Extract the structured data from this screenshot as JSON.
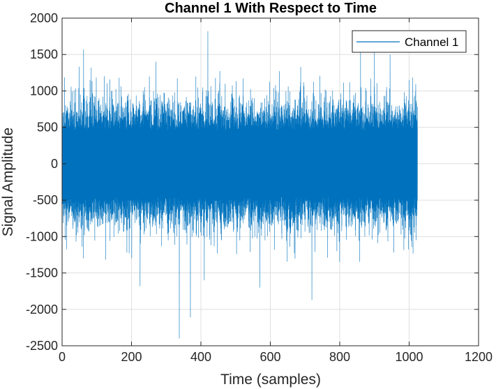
{
  "colors": {
    "series": "#0072BD",
    "grid": "#dfdfdf",
    "axis": "#262626",
    "background": "#ffffff"
  },
  "chart_data": {
    "type": "line",
    "title": "Channel 1 With Respect to Time",
    "xlabel": "Time (samples)",
    "ylabel": "Signal Amplitude",
    "xlim": [
      0,
      1200
    ],
    "ylim": [
      -2500,
      2000
    ],
    "xticks": [
      0,
      200,
      400,
      600,
      800,
      1000,
      1200
    ],
    "yticks": [
      -2500,
      -2000,
      -1500,
      -1000,
      -500,
      0,
      500,
      1000,
      1500,
      2000
    ],
    "xtick_labels": [
      "0",
      "200",
      "400",
      "600",
      "800",
      "1000",
      "1200"
    ],
    "ytick_labels": [
      "-2500",
      "-2000",
      "-1500",
      "-1000",
      "-500",
      "0",
      "500",
      "1000",
      "1500",
      "2000"
    ],
    "grid": true,
    "legend_position": "top-right",
    "series": [
      {
        "name": "Channel 1",
        "x_range": [
          0,
          1024
        ],
        "typical_band": [
          -800,
          800
        ],
        "notable_peaks": [
          {
            "x": 62,
            "y": 1570
          },
          {
            "x": 270,
            "y": 1400
          },
          {
            "x": 420,
            "y": 1820
          },
          {
            "x": 860,
            "y": 1550
          },
          {
            "x": 900,
            "y": 1600
          },
          {
            "x": 945,
            "y": 1500
          },
          {
            "x": 1000,
            "y": 1150
          }
        ],
        "notable_troughs": [
          {
            "x": 62,
            "y": -1300
          },
          {
            "x": 225,
            "y": -1680
          },
          {
            "x": 338,
            "y": -2400
          },
          {
            "x": 370,
            "y": -2110
          },
          {
            "x": 410,
            "y": -1600
          },
          {
            "x": 570,
            "y": -1700
          },
          {
            "x": 720,
            "y": -1870
          },
          {
            "x": 800,
            "y": -1350
          },
          {
            "x": 1020,
            "y": -1050
          }
        ]
      }
    ]
  }
}
